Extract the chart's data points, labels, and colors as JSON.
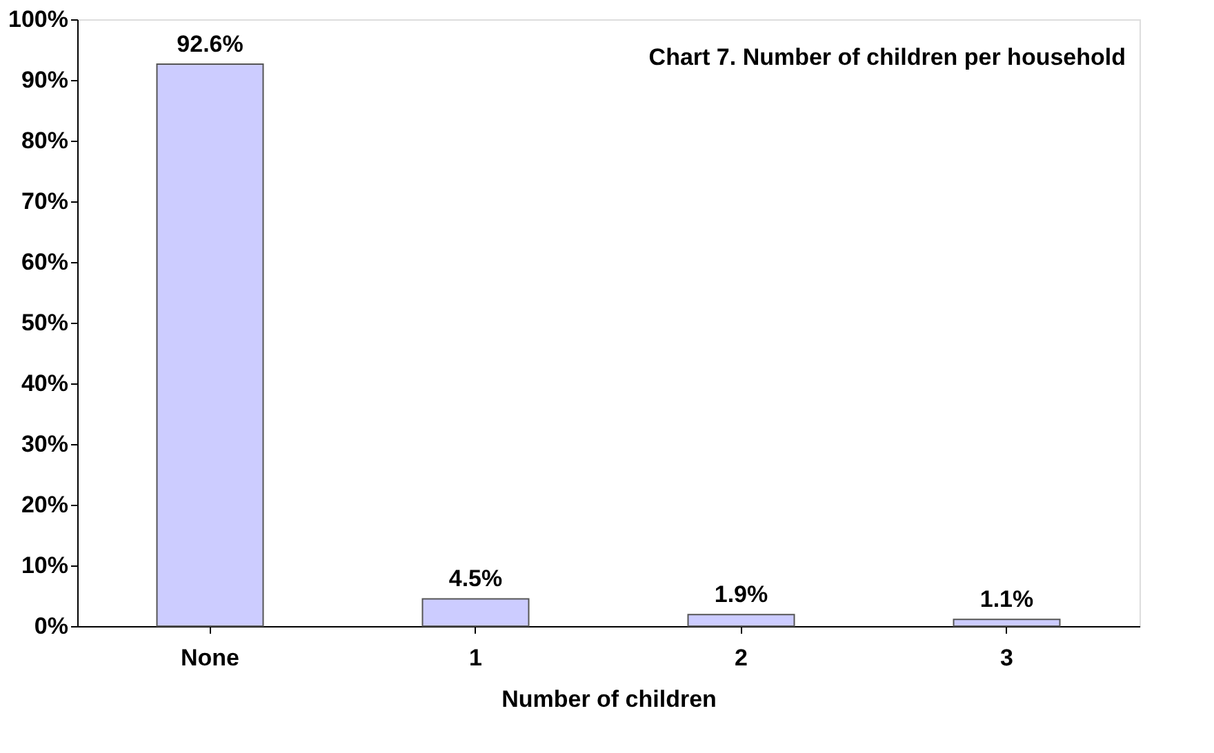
{
  "chart_data": {
    "type": "bar",
    "title": "Chart 7. Number of children per household",
    "xlabel": "Number of children",
    "categories": [
      "None",
      "1",
      "2",
      "3"
    ],
    "values": [
      92.6,
      4.5,
      1.9,
      1.1
    ],
    "value_labels": [
      "92.6%",
      "4.5%",
      "1.9%",
      "1.1%"
    ],
    "color": "#ccccff",
    "ylim": [
      0,
      100
    ],
    "yticks": [
      {
        "value": 0,
        "label": "0%"
      },
      {
        "value": 10,
        "label": "10%"
      },
      {
        "value": 20,
        "label": "20%"
      },
      {
        "value": 30,
        "label": "30%"
      },
      {
        "value": 40,
        "label": "40%"
      },
      {
        "value": 50,
        "label": "50%"
      },
      {
        "value": 60,
        "label": "60%"
      },
      {
        "value": 70,
        "label": "70%"
      },
      {
        "value": 80,
        "label": "80%"
      },
      {
        "value": 90,
        "label": "90%"
      },
      {
        "value": 100,
        "label": "100%"
      }
    ],
    "grid": false
  }
}
